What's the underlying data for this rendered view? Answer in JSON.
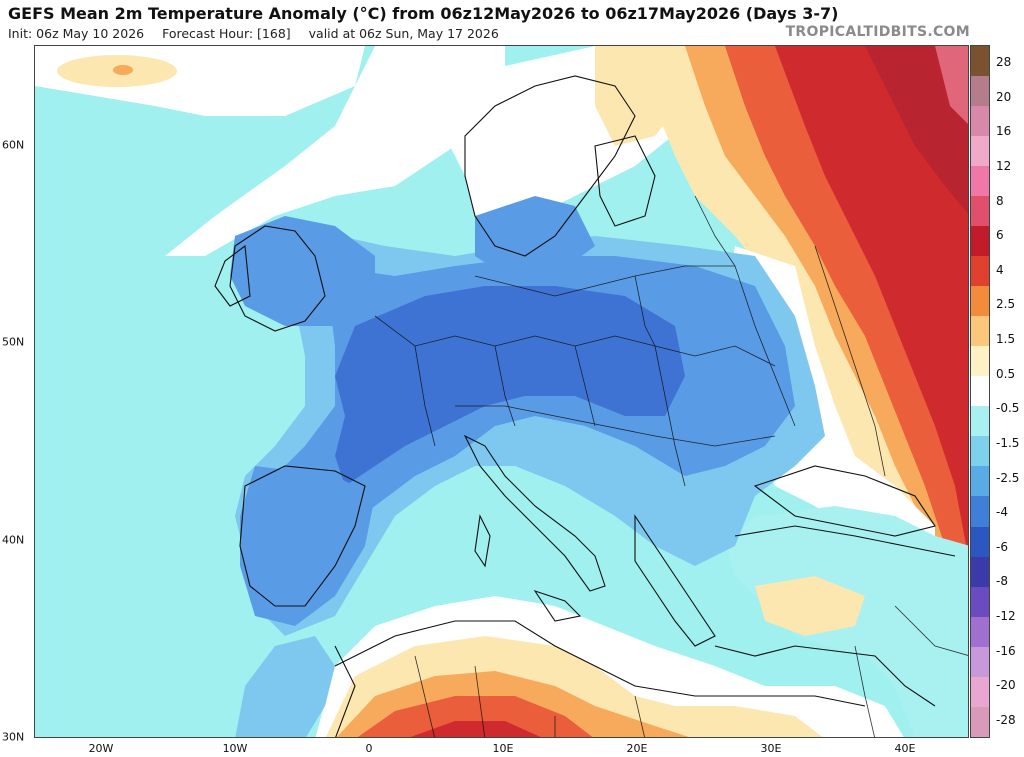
{
  "header": {
    "title": "GEFS Mean 2m Temperature Anomaly (°C) from 06z12May2026 to 06z17May2026 (Days 3-7)",
    "init": "Init: 06z May 10 2026",
    "forecast_hour": "Forecast Hour: [168]",
    "valid": "valid at 06z Sun, May 17 2026",
    "brand": "TROPICALTIDBITS.COM"
  },
  "axes": {
    "x_ticks": [
      "20W",
      "10W",
      "0",
      "10E",
      "20E",
      "30E",
      "40E"
    ],
    "y_ticks": [
      "60N",
      "50N",
      "40N",
      "30N"
    ]
  },
  "legend": {
    "labels": [
      "28",
      "20",
      "16",
      "12",
      "8",
      "6",
      "4",
      "2.5",
      "1.5",
      "0.5",
      "-0.5",
      "-1.5",
      "-2.5",
      "-4",
      "-6",
      "-8",
      "-12",
      "-16",
      "-20",
      "-28"
    ],
    "colors": [
      "#7a5230",
      "#b57d8c",
      "#d889a9",
      "#f0a9c9",
      "#f078a8",
      "#e0506a",
      "#c21c2a",
      "#e0402e",
      "#f28c3c",
      "#fbc77c",
      "#fdf2c6",
      "#ffffff",
      "#a9f0f0",
      "#7ed0ec",
      "#5aaae6",
      "#3f7fd8",
      "#2c56c0",
      "#3a3aa8",
      "#6a4cc0",
      "#a070d0",
      "#c898dc",
      "#e8a6d0",
      "#d89ab8"
    ]
  },
  "map": {
    "extent": {
      "lon": [
        -25,
        45
      ],
      "lat": [
        30,
        65
      ]
    },
    "colors": {
      "ocean_cold": "#9ff0ef",
      "cold1": "#7ec8ef",
      "cold2": "#5a9be5",
      "cold3": "#3f73d3",
      "neutral": "#ffffff",
      "warm1": "#fde7b0",
      "warm2": "#f7a95c",
      "warm3": "#ea5e3b",
      "warm4": "#cf2b2e",
      "warm5": "#b8242f"
    }
  }
}
